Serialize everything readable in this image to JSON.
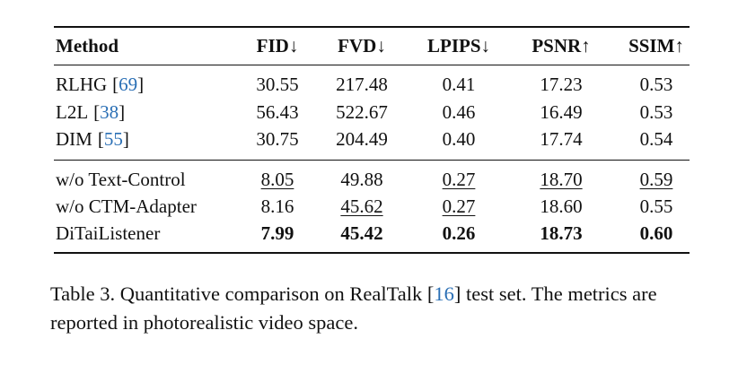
{
  "table": {
    "header": [
      "Method",
      "FID↓",
      "FVD↓",
      "LPIPS↓",
      "PSNR↑",
      "SSIM↑"
    ],
    "groups": [
      [
        {
          "method": "RLHG",
          "ref": "[69]",
          "values": [
            "30.55",
            "217.48",
            "0.41",
            "17.23",
            "0.53"
          ]
        },
        {
          "method": "L2L",
          "ref": "[38]",
          "values": [
            "56.43",
            "522.67",
            "0.46",
            "16.49",
            "0.53"
          ]
        },
        {
          "method": "DIM",
          "ref": "[55]",
          "values": [
            "30.75",
            "204.49",
            "0.40",
            "17.74",
            "0.54"
          ]
        }
      ],
      [
        {
          "method": "w/o Text-Control",
          "values": [
            "8.05",
            "49.88",
            "0.27",
            "18.70",
            "0.59"
          ],
          "underlined": [
            0,
            2,
            3,
            4
          ]
        },
        {
          "method": "w/o CTM-Adapter",
          "values": [
            "8.16",
            "45.62",
            "0.27",
            "18.60",
            "0.55"
          ],
          "underlined": [
            1,
            2
          ]
        },
        {
          "method": "DiTaiListener",
          "values": [
            "7.99",
            "45.42",
            "0.26",
            "18.73",
            "0.60"
          ],
          "bold": true
        }
      ]
    ]
  },
  "caption": {
    "label": "Table 3.",
    "before": "Quantitative comparison on RealTalk",
    "ref": "[16]",
    "after": "test set. The metrics are reported in photorealistic video space."
  }
}
